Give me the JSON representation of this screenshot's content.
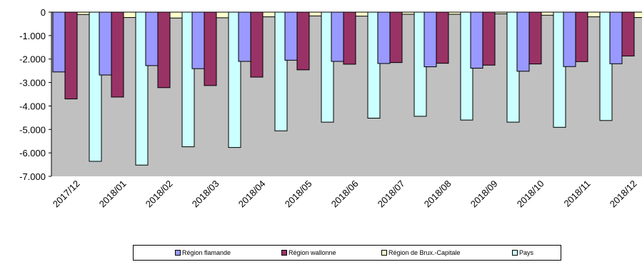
{
  "chart_data": {
    "type": "bar",
    "categories": [
      "2017/12",
      "2018/01",
      "2018/02",
      "2018/03",
      "2018/04",
      "2018/05",
      "2018/06",
      "2018/07",
      "2018/08",
      "2018/09",
      "2018/10",
      "2018/11",
      "2018/12"
    ],
    "series": [
      {
        "name": "Région flamande",
        "color": "#9999ff",
        "values": [
          -2550,
          -2680,
          -2280,
          -2410,
          -2100,
          -2050,
          -2100,
          -2190,
          -2330,
          -2390,
          -2520,
          -2320,
          -2200
        ]
      },
      {
        "name": "Région wallonne",
        "color": "#993366",
        "values": [
          -3700,
          -3620,
          -3220,
          -3130,
          -2770,
          -2460,
          -2220,
          -2150,
          -2180,
          -2260,
          -2210,
          -2110,
          -1870
        ]
      },
      {
        "name": "Région de Brux.-Capitale",
        "color": "#ffffcc",
        "values": [
          -100,
          -230,
          -250,
          -240,
          -200,
          -160,
          -170,
          -90,
          -90,
          -70,
          -130,
          -200,
          -230
        ]
      },
      {
        "name": "Pays",
        "color": "#ccffff",
        "values": [
          -6360,
          -6520,
          -5740,
          -5770,
          -5060,
          -4690,
          -4520,
          -4440,
          -4600,
          -4690,
          -4910,
          -4620,
          -4320
        ]
      }
    ],
    "ylim": [
      -7000,
      0
    ],
    "yticks": [
      0,
      -1000,
      -2000,
      -3000,
      -4000,
      -5000,
      -6000,
      -7000
    ],
    "ytick_labels": [
      "0",
      "-1.000",
      "-2.000",
      "-3.000",
      "-4.000",
      "-5.000",
      "-6.000",
      "-7.000"
    ],
    "plot_background": "#c0c0c0",
    "grid": false,
    "legend_position": "bottom"
  }
}
